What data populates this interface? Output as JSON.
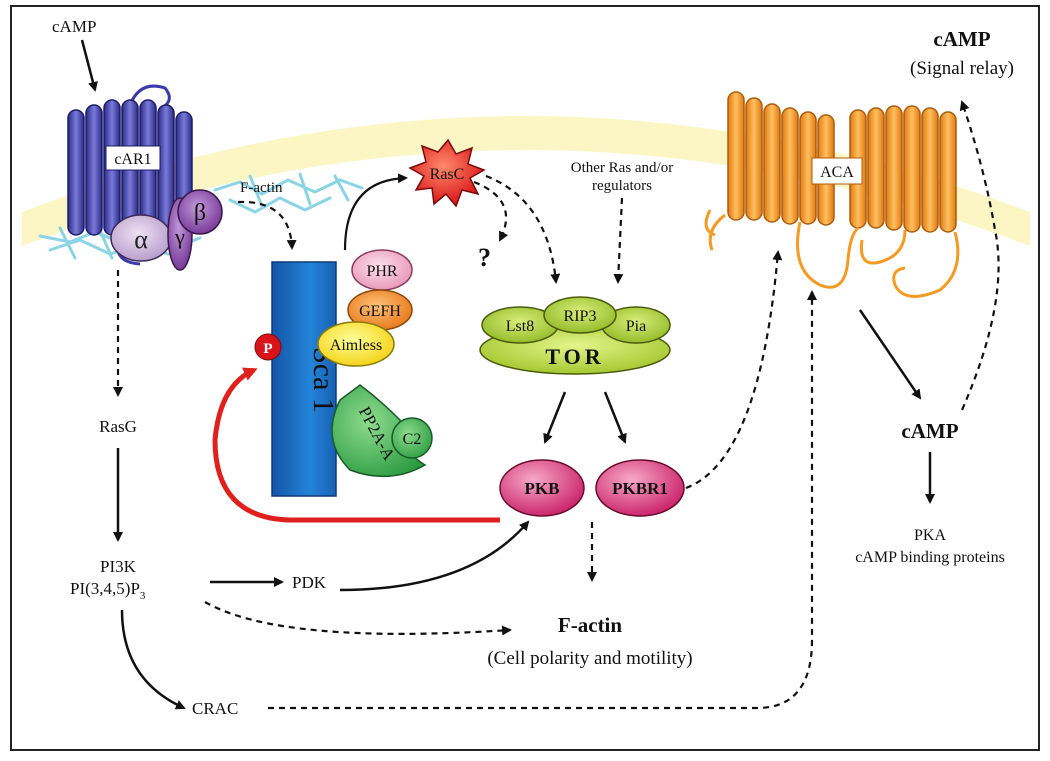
{
  "diagram": {
    "labels": {
      "camp_top_left": "cAMP",
      "car1": "cAR1",
      "alpha": "α",
      "beta": "β",
      "gamma": "γ",
      "factin_membrane": "F-actin",
      "rasc": "RasC",
      "question": "?",
      "other_ras_line1": "Other Ras and/or",
      "other_ras_line2": "regulators",
      "camp_relay_title": "cAMP",
      "camp_relay_sub": "(Signal relay)",
      "aca": "ACA",
      "phr": "PHR",
      "gefh": "GEFH",
      "aimless": "Aimless",
      "phospho": "P",
      "sca1": "Sca 1",
      "pp2a": "PP2A-A",
      "c2": "C2",
      "lst8": "Lst8",
      "rip3": "RIP3",
      "pia": "Pia",
      "tor": "TOR",
      "rasg": "RasG",
      "pi3k": "PI3K",
      "pip3": "PI(3,4,5)P",
      "pip3_sub": "3",
      "pdk": "PDK",
      "pkb": "PKB",
      "pkbr1": "PKBR1",
      "factin_title": "F-actin",
      "factin_sub": "(Cell polarity and motility)",
      "camp_mid": "cAMP",
      "pka_line1": "PKA",
      "pka_line2": "cAMP binding proteins",
      "crac": "CRAC"
    },
    "colors": {
      "membrane": "#fbf6c4",
      "receptor_blue": "#3a3aa8",
      "aca_orange": "#f59a22",
      "sca1_blue": "#1a6fc4",
      "rasc_red": "#e8281e",
      "pkb_pink": "#d83a78",
      "tor_green": "#b4d43c",
      "red_arrow": "#e0201c"
    }
  }
}
